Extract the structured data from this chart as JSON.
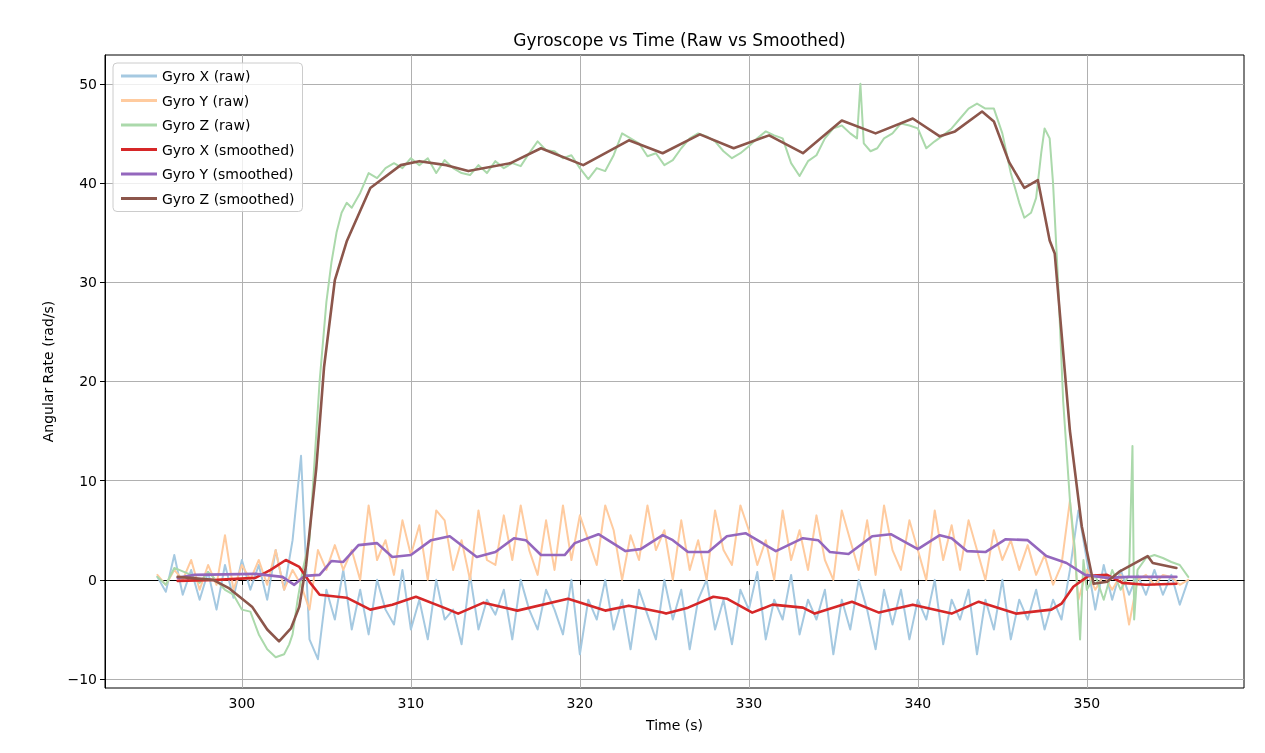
{
  "chart_data": {
    "type": "line",
    "title": "Gyroscope vs Time (Raw vs Smoothed)",
    "xlabel": "Time (s)",
    "ylabel": "Angular Rate (rad/s)",
    "xlim": [
      291.9,
      359.3
    ],
    "ylim": [
      -10.9,
      52.9
    ],
    "xticks": [
      300,
      310,
      320,
      330,
      340,
      350
    ],
    "yticks": [
      {
        "value": -10,
        "label": "−10"
      },
      0,
      10,
      20,
      30,
      40,
      50
    ],
    "grid": true,
    "legend": "top left",
    "x": [
      295,
      295.5,
      296,
      296.5,
      297,
      297.5,
      298,
      298.5,
      299,
      299.5,
      300,
      300.5,
      301,
      301.5,
      302,
      302.5,
      303,
      303.5,
      304,
      304.5,
      305,
      305.5,
      306,
      306.5,
      307,
      307.5,
      308,
      308.5,
      309,
      309.5,
      310,
      310.5,
      311,
      311.5,
      312,
      312.5,
      313,
      313.5,
      314,
      314.5,
      315,
      315.5,
      316,
      316.5,
      317,
      317.5,
      318,
      318.5,
      319,
      319.5,
      320,
      320.5,
      321,
      321.5,
      322,
      322.5,
      323,
      323.5,
      324,
      324.5,
      325,
      325.5,
      326,
      326.5,
      327,
      327.5,
      328,
      328.5,
      329,
      329.5,
      330,
      330.5,
      331,
      331.5,
      332,
      332.5,
      333,
      333.5,
      334,
      334.5,
      335,
      335.5,
      336,
      336.5,
      337,
      337.5,
      338,
      338.5,
      339,
      339.5,
      340,
      340.5,
      341,
      341.5,
      342,
      342.5,
      343,
      343.5,
      344,
      344.5,
      345,
      345.5,
      346,
      346.5,
      347,
      347.5,
      348,
      348.5,
      349,
      349.5,
      350,
      350.5,
      351,
      351.5,
      352,
      352.5,
      353,
      353.5,
      354,
      354.5,
      355,
      355.5,
      356
    ],
    "series": [
      {
        "name": "Gyro X (raw)",
        "color": "#a5c9e1",
        "values": [
          0.3,
          -1.2,
          2.5,
          -1.5,
          1,
          -2,
          0.8,
          -3,
          1.5,
          -1.8,
          2,
          -1,
          1.5,
          -2,
          3,
          -1,
          4,
          12.5,
          -6,
          -8,
          -1,
          -4,
          1,
          -5,
          -1,
          -5.5,
          0,
          -3,
          -4.5,
          1,
          -5,
          -2,
          -6,
          0,
          -4,
          -3,
          -6.5,
          0.5,
          -5,
          -2,
          -3.5,
          -1,
          -6,
          0,
          -3,
          -5,
          -1,
          -3,
          -5.5,
          0,
          -7.5,
          -2,
          -4,
          0,
          -5,
          -2,
          -7,
          -1,
          -3.5,
          -6,
          0,
          -4,
          -1,
          -7,
          -2,
          0,
          -5,
          -2,
          -6.5,
          -1,
          -3,
          0.8,
          -6,
          -2,
          -4,
          0.5,
          -5.5,
          -2,
          -4,
          -1,
          -7.5,
          -2,
          -5,
          0,
          -3,
          -7,
          -1,
          -4.5,
          -1,
          -6,
          -2,
          -4,
          0,
          -6.5,
          -2,
          -4,
          -1,
          -7.5,
          -2,
          -5,
          0,
          -6,
          -2,
          -4,
          -1,
          -5,
          -2,
          -4,
          1,
          7,
          2,
          -3,
          1.5,
          -2,
          1,
          -1.5,
          0.5,
          -1.5,
          1,
          -1.5,
          0.5,
          -2.5,
          0
        ]
      },
      {
        "name": "Gyro Y (raw)",
        "color": "#ffcb9f",
        "values": [
          0.5,
          -0.5,
          1,
          0,
          2,
          -1,
          1.5,
          -0.5,
          4.5,
          -1,
          1.5,
          0,
          2,
          -0.5,
          3,
          -1,
          1,
          -0.5,
          -3,
          3,
          1,
          3.5,
          1,
          3,
          0,
          7.5,
          2,
          4,
          0.5,
          6,
          2.5,
          5.5,
          0,
          7,
          6,
          1,
          4,
          0,
          7,
          2,
          1.5,
          6.5,
          2,
          7.5,
          3,
          0.5,
          6,
          1,
          7.5,
          2,
          6.5,
          4,
          1.5,
          7.5,
          5,
          0,
          4.5,
          2,
          7.5,
          3,
          5,
          0,
          6,
          1,
          4,
          0,
          7,
          3,
          1.5,
          7.5,
          5,
          1.5,
          4,
          0,
          7,
          2,
          5,
          1,
          6.5,
          2,
          0,
          7,
          4,
          1,
          6,
          0.5,
          7.5,
          3,
          1,
          6,
          3,
          0,
          7,
          2,
          5.5,
          1,
          6,
          3,
          0,
          5,
          2,
          4,
          1,
          3.5,
          0.5,
          2.5,
          -0.5,
          1.5,
          8,
          -2,
          1,
          -1,
          0.5,
          -1,
          0.5,
          -4.5,
          0,
          0.5,
          -0.5,
          0.5,
          0.3,
          -0.5,
          0
        ]
      },
      {
        "name": "Gyro Z (raw)",
        "color": "#abd9ab",
        "x": [
          295,
          295.5,
          296,
          297,
          297.5,
          298,
          299,
          299.5,
          300,
          300.5,
          301,
          301.5,
          302,
          302.5,
          302.8,
          303,
          303.3,
          303.6,
          304,
          304.3,
          304.6,
          305,
          305.3,
          305.6,
          305.9,
          306.2,
          306.5,
          307,
          307.5,
          308,
          308.5,
          309,
          309.5,
          310,
          310.5,
          311,
          311.5,
          312,
          312.5,
          313,
          313.5,
          314,
          314.5,
          315,
          315.5,
          316,
          316.5,
          317,
          317.5,
          318,
          318.5,
          319,
          319.5,
          320,
          320.5,
          321,
          321.5,
          322,
          322.5,
          323,
          323.5,
          324,
          324.5,
          325,
          325.5,
          326,
          326.5,
          327,
          327.5,
          328,
          328.5,
          329,
          329.5,
          330,
          330.5,
          331,
          331.5,
          332,
          332.5,
          333,
          333.5,
          334,
          334.5,
          335,
          335.5,
          336,
          336.4,
          336.6,
          336.8,
          337.2,
          337.6,
          338,
          338.5,
          339,
          339.5,
          340,
          340.5,
          341,
          341.5,
          342,
          342.5,
          343,
          343.5,
          344,
          344.5,
          345,
          345.5,
          346,
          346.3,
          346.7,
          347,
          347.3,
          347.5,
          347.8,
          348,
          348.3,
          348.6,
          349,
          349.3,
          349.6,
          349.8,
          350,
          350.5,
          351,
          351.5,
          352,
          352.5,
          352.7,
          352.8,
          353,
          353.5,
          354,
          354.5,
          355,
          355.5,
          356
        ],
        "values": [
          0.3,
          -0.5,
          1.2,
          0.5,
          -0.3,
          0.8,
          -1,
          -1.5,
          -3,
          -3.2,
          -5.5,
          -7,
          -7.8,
          -7.5,
          -6.5,
          -5.5,
          -2,
          1,
          4,
          12,
          20,
          28,
          32,
          35,
          37,
          38,
          37.5,
          39,
          41,
          40.5,
          41.5,
          42,
          41.5,
          42.5,
          41.8,
          42.5,
          41,
          42.3,
          41.5,
          41,
          40.8,
          41.8,
          41,
          42.2,
          41.5,
          42,
          41.7,
          43,
          44.2,
          43.3,
          43.2,
          42.5,
          42.8,
          41.5,
          40.4,
          41.5,
          41.2,
          42.8,
          45,
          44.5,
          44,
          42.7,
          43,
          41.8,
          42.3,
          43.5,
          44.5,
          45,
          44.7,
          44.2,
          43.2,
          42.5,
          43,
          43.7,
          44.5,
          45.2,
          44.8,
          44.5,
          42,
          40.7,
          42.2,
          42.8,
          44.5,
          45.5,
          45.8,
          45,
          44.5,
          50,
          44,
          43.2,
          43.5,
          44.5,
          45,
          46,
          45.8,
          45.5,
          43.5,
          44.2,
          44.8,
          45.5,
          46.5,
          47.5,
          48,
          47.5,
          47.5,
          45,
          41,
          38,
          36.5,
          37,
          38.5,
          43,
          45.5,
          44.5,
          40,
          30,
          18,
          8,
          3,
          -6,
          2,
          -1,
          0.5,
          -2,
          1,
          -1,
          0.5,
          13.5,
          -4,
          1,
          2.2,
          2.5,
          2.2,
          1.8,
          1.5,
          0.3
        ]
      },
      {
        "name": "Gyro X (smoothed)",
        "color": "#d62728",
        "x": [
          296.2,
          298.5,
          300.8,
          301.7,
          302.6,
          303.4,
          304,
          304.6,
          306.2,
          307.6,
          308.9,
          310.3,
          312.1,
          312.8,
          314.3,
          316.3,
          319.3,
          321.5,
          322.9,
          324.9,
          325.1,
          326.4,
          327.9,
          328.7,
          330.2,
          331.4,
          333.2,
          333.9,
          336.1,
          337.7,
          339.7,
          342,
          343.6,
          345.8,
          347.9,
          348.5,
          349.2,
          350.1,
          351.2,
          352.1,
          353.5,
          355.3
        ],
        "values": [
          -0.1,
          0,
          0.2,
          1,
          2,
          1.3,
          -0.2,
          -1.5,
          -1.8,
          -3,
          -2.5,
          -1.7,
          -2.9,
          -3.4,
          -2.3,
          -3.1,
          -1.9,
          -3.1,
          -2.6,
          -3.3,
          -3.4,
          -2.8,
          -1.7,
          -1.9,
          -3.3,
          -2.5,
          -2.8,
          -3.4,
          -2.2,
          -3.3,
          -2.5,
          -3.4,
          -2.2,
          -3.4,
          -3,
          -2.4,
          -0.7,
          0.4,
          0.5,
          -0.3,
          -0.5,
          -0.4
        ]
      },
      {
        "name": "Gyro Y (smoothed)",
        "color": "#9467bd",
        "x": [
          296.2,
          297.2,
          300.8,
          302.4,
          303.1,
          303.7,
          304.6,
          305.3,
          306,
          306.9,
          308,
          308.9,
          310,
          311.2,
          312.3,
          313.9,
          315,
          316.1,
          316.8,
          317.7,
          319.1,
          319.7,
          321.1,
          322.7,
          323.6,
          324.9,
          325.5,
          326.4,
          327.6,
          328.7,
          329.8,
          331.6,
          333.2,
          334.1,
          334.8,
          335.9,
          337.3,
          338.4,
          340,
          341.3,
          342,
          342.9,
          344,
          345.2,
          346.5,
          347.6,
          348.8,
          349.9,
          351.2,
          352.5,
          355.3
        ],
        "values": [
          0.2,
          0.5,
          0.6,
          0.3,
          -0.5,
          0.4,
          0.5,
          1.9,
          1.8,
          3.5,
          3.7,
          2.3,
          2.5,
          4,
          4.4,
          2.3,
          2.8,
          4.2,
          4,
          2.5,
          2.5,
          3.7,
          4.6,
          2.9,
          3.1,
          4.5,
          4,
          2.8,
          2.8,
          4.4,
          4.7,
          2.9,
          4.2,
          4,
          2.8,
          2.6,
          4.4,
          4.6,
          3.1,
          4.5,
          4.2,
          2.9,
          2.8,
          4.1,
          4,
          2.4,
          1.7,
          0.5,
          0.2,
          0.3,
          0.3
        ]
      },
      {
        "name": "Gyro Z (smoothed)",
        "color": "#8c564b",
        "x": [
          296.2,
          298.3,
          299.2,
          300.6,
          301.5,
          302.2,
          302.9,
          303.4,
          303.8,
          304.4,
          304.86,
          305.5,
          306.2,
          307.6,
          309.4,
          310.5,
          312.1,
          313.4,
          315.9,
          317.7,
          320.2,
          322.9,
          324.9,
          327.1,
          329.1,
          331.2,
          333.2,
          335.5,
          337.5,
          339.7,
          341.3,
          342.2,
          343.8,
          344.5,
          345.4,
          346.3,
          347.1,
          347.8,
          348.1,
          349,
          349.7,
          350.4,
          351.2,
          351.9,
          353.6,
          353.9,
          355.3
        ],
        "values": [
          0.3,
          0,
          -0.8,
          -2.7,
          -5,
          -6.2,
          -4.9,
          -2.7,
          1.5,
          11.2,
          21.4,
          30.2,
          34.1,
          39.5,
          41.8,
          42.2,
          41.8,
          41.2,
          42,
          43.5,
          41.8,
          44.3,
          43,
          44.9,
          43.5,
          44.8,
          43,
          46.3,
          45,
          46.5,
          44.7,
          45.2,
          47.2,
          46.2,
          42.1,
          39.5,
          40.3,
          34.2,
          32.9,
          15,
          5.4,
          -0.4,
          -0.2,
          0.8,
          2.4,
          1.7,
          1.2
        ]
      }
    ]
  }
}
